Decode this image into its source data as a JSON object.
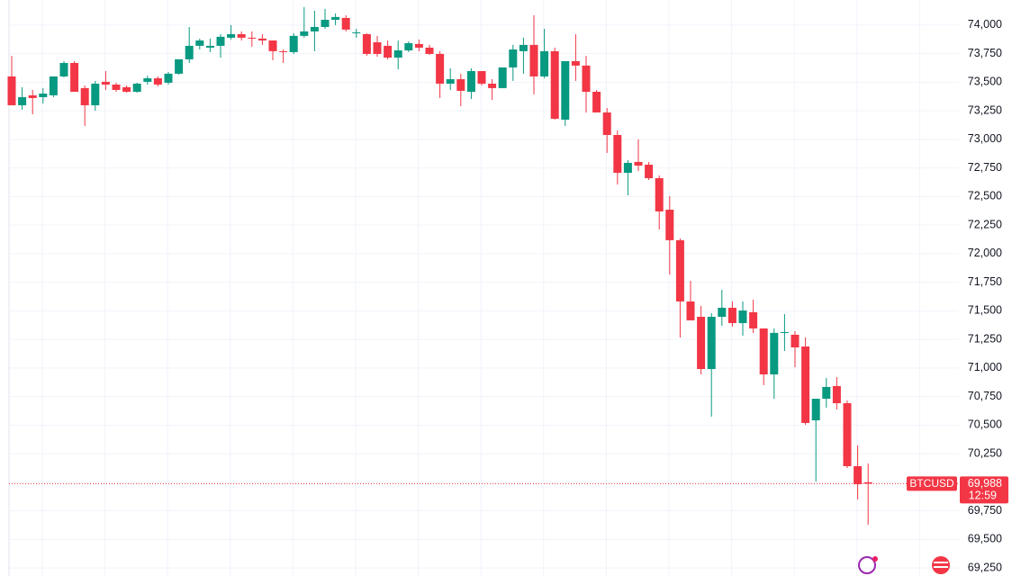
{
  "chart_data": {
    "type": "candlestick",
    "symbol": "BTCUSD",
    "last_price": {
      "value": 69988,
      "label": "69,988"
    },
    "countdown": "12:59",
    "up_color": "#089981",
    "down_color": "#f23645",
    "grid": true,
    "ylim": [
      69180,
      74220
    ],
    "yticks": [
      {
        "value": 69250,
        "label": "69,250"
      },
      {
        "value": 69500,
        "label": "69,500"
      },
      {
        "value": 69750,
        "label": "69,750"
      },
      {
        "value": 70000,
        "label": "70,000"
      },
      {
        "value": 70250,
        "label": "70,250"
      },
      {
        "value": 70500,
        "label": "70,500"
      },
      {
        "value": 70750,
        "label": "70,750"
      },
      {
        "value": 71000,
        "label": "71,000"
      },
      {
        "value": 71250,
        "label": "71,250"
      },
      {
        "value": 71500,
        "label": "71,500"
      },
      {
        "value": 71750,
        "label": "71,750"
      },
      {
        "value": 72000,
        "label": "72,000"
      },
      {
        "value": 72250,
        "label": "72,250"
      },
      {
        "value": 72500,
        "label": "72,500"
      },
      {
        "value": 72750,
        "label": "72,750"
      },
      {
        "value": 73000,
        "label": "73,000"
      },
      {
        "value": 73250,
        "label": "73,250"
      },
      {
        "value": 73500,
        "label": "73,500"
      },
      {
        "value": 73750,
        "label": "73,750"
      },
      {
        "value": 74000,
        "label": "74,000"
      }
    ],
    "open": [
      73551,
      73299,
      73386,
      73370,
      73386,
      73551,
      73669,
      73449,
      73299,
      73504,
      73480,
      73457,
      73417,
      73504,
      73535,
      73496,
      73575,
      73701,
      73819,
      73803,
      73819,
      73890,
      73921,
      73890,
      73882,
      73866,
      73772,
      73764,
      73906,
      73945,
      73984,
      74047,
      74063,
      73929,
      73921,
      73850,
      73819,
      73716,
      73779,
      73835,
      73803,
      73748,
      73488,
      73527,
      73417,
      73598,
      73488,
      73449,
      73630,
      73772,
      73827,
      73551,
      73772,
      73173,
      73685,
      73646,
      73417,
      73236,
      73039,
      72708,
      72803,
      72779,
      72661,
      72385,
      72118,
      71582,
      71448,
      70991,
      71448,
      71527,
      71393,
      71488,
      71346,
      70944,
      71307,
      71291,
      71188,
      70542,
      70731,
      70842,
      70692,
      70141,
      70000
    ],
    "high": [
      73732,
      73457,
      73433,
      73449,
      73551,
      73685,
      73685,
      73472,
      73512,
      73598,
      73496,
      73472,
      73496,
      73559,
      73551,
      73590,
      73701,
      73984,
      73882,
      73882,
      73921,
      74000,
      73945,
      73945,
      73921,
      73866,
      73787,
      73929,
      74158,
      74126,
      74142,
      74102,
      74087,
      73968,
      73929,
      73906,
      73866,
      73866,
      73858,
      73874,
      73827,
      73772,
      73622,
      73575,
      73622,
      73598,
      73527,
      73630,
      73827,
      73890,
      74087,
      73968,
      73803,
      73685,
      73921,
      73732,
      73433,
      73275,
      73079,
      72819,
      73000,
      72803,
      72685,
      72504,
      72133,
      71763,
      71543,
      71480,
      71684,
      71582,
      71582,
      71598,
      71346,
      71346,
      71472,
      71322,
      71267,
      70731,
      70913,
      70920,
      70716,
      70322,
      70164
    ],
    "low": [
      73299,
      73260,
      73220,
      73315,
      73370,
      73543,
      73417,
      73118,
      73252,
      73433,
      73417,
      73409,
      73409,
      73480,
      73464,
      73480,
      73567,
      73669,
      73787,
      73764,
      73716,
      73874,
      73866,
      73811,
      73827,
      73693,
      73669,
      73748,
      73890,
      73772,
      73968,
      74000,
      73945,
      73890,
      73732,
      73724,
      73701,
      73614,
      73764,
      73772,
      73740,
      73362,
      73433,
      73291,
      73354,
      73472,
      73346,
      73449,
      73512,
      73575,
      73394,
      73535,
      73173,
      73118,
      73512,
      73236,
      73236,
      72882,
      72606,
      72511,
      72724,
      72645,
      72212,
      71818,
      71267,
      71417,
      70944,
      70574,
      71369,
      71362,
      71283,
      71307,
      70850,
      70731,
      71149,
      71007,
      70503,
      70007,
      70653,
      70637,
      70125,
      69849,
      69629
    ],
    "close": [
      73299,
      73370,
      73362,
      73401,
      73551,
      73669,
      73417,
      73299,
      73488,
      73480,
      73433,
      73417,
      73488,
      73535,
      73480,
      73575,
      73701,
      73819,
      73866,
      73819,
      73898,
      73921,
      73890,
      73882,
      73866,
      73772,
      73764,
      73906,
      73945,
      73984,
      74047,
      74071,
      73961,
      73937,
      73748,
      73748,
      73716,
      73779,
      73842,
      73803,
      73748,
      73488,
      73527,
      73425,
      73598,
      73488,
      73449,
      73630,
      73787,
      73827,
      73551,
      73772,
      73181,
      73685,
      73646,
      73417,
      73236,
      73039,
      72708,
      72795,
      72771,
      72661,
      72370,
      72118,
      71582,
      71417,
      70991,
      71448,
      71527,
      71393,
      71503,
      71346,
      70944,
      71307,
      71314,
      71180,
      70519,
      70731,
      70834,
      70692,
      70141,
      69983,
      69988
    ]
  }
}
